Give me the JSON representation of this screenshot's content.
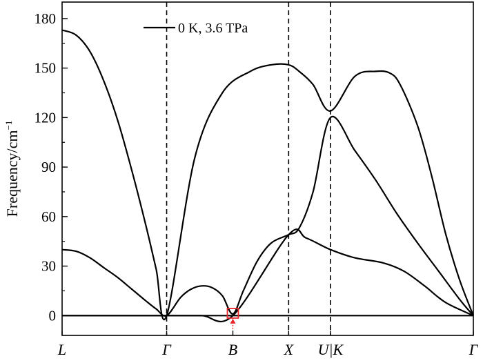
{
  "chart_data": {
    "type": "line",
    "title": "",
    "ylabel": "Frequency/cm",
    "ylabel_sup": "−1",
    "ylim": [
      -12,
      190
    ],
    "yticks": [
      0,
      30,
      60,
      90,
      120,
      150,
      180
    ],
    "ytick_labels": [
      "0",
      "30",
      "60",
      "90",
      "120",
      "150",
      "180"
    ],
    "x_range": [
      0,
      5.9
    ],
    "x_ticks": [
      {
        "label": "L",
        "x": 0
      },
      {
        "label": "Γ",
        "x": 1.5
      },
      {
        "label": "B",
        "x": 2.45
      },
      {
        "label": "X",
        "x": 3.25
      },
      {
        "label": "U|K",
        "x": 3.85
      },
      {
        "label": "Γ",
        "x": 5.9
      }
    ],
    "vlines_at": [
      "Γ",
      "X",
      "U|K"
    ],
    "legend": {
      "label": "0 K, 3.6 TPa",
      "position": "top-center"
    },
    "highlight": {
      "marker": "square",
      "color": "#e8262a",
      "x": 2.45,
      "y": 1,
      "arrow": "up"
    },
    "series": [
      {
        "x": [
          0,
          0.2,
          0.4,
          0.6,
          0.8,
          1.0,
          1.2,
          1.35,
          1.5,
          1.9,
          2.3,
          2.7,
          3.0,
          3.25,
          3.4,
          3.6,
          3.85,
          4.2,
          4.5,
          4.7,
          4.85,
          5.1,
          5.3,
          5.5,
          5.7,
          5.9
        ],
        "y": [
          173,
          170,
          160,
          142,
          118,
          88,
          55,
          28,
          0,
          95,
          135,
          148,
          152,
          152,
          148,
          140,
          124,
          145,
          148,
          147,
          140,
          115,
          85,
          50,
          22,
          0
        ]
      },
      {
        "x": [
          0,
          0.2,
          0.4,
          0.6,
          0.8,
          1.0,
          1.2,
          1.35,
          1.5,
          1.7,
          1.85,
          2.0,
          2.15,
          2.3,
          2.45,
          2.6,
          2.8,
          3.0,
          3.25,
          3.4,
          3.6,
          3.85,
          4.2,
          4.5,
          4.8,
          5.1,
          5.4,
          5.7,
          5.9
        ],
        "y": [
          40,
          39,
          35,
          29,
          23,
          16,
          9,
          4,
          0,
          11,
          16,
          18,
          17,
          12,
          1,
          15,
          33,
          44,
          49,
          53,
          75,
          120,
          100,
          82,
          62,
          44,
          27,
          10,
          0
        ]
      },
      {
        "x": [
          0,
          1.5,
          2.0,
          2.45,
          3.25,
          3.5,
          3.85,
          4.2,
          4.6,
          4.9,
          5.2,
          5.5,
          5.9
        ],
        "y": [
          0,
          0,
          0,
          0,
          49,
          47,
          40,
          35,
          32,
          27,
          18,
          8,
          0
        ]
      },
      {
        "x": [
          0,
          5.9
        ],
        "y": [
          0,
          0
        ]
      }
    ]
  }
}
